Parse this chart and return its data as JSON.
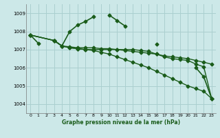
{
  "title": "Graphe pression niveau de la mer (hPa)",
  "bg_color": "#cce8e8",
  "grid_color": "#aacfcf",
  "line_color": "#1a5c1a",
  "marker_color": "#1a5c1a",
  "xlim": [
    -0.5,
    23.5
  ],
  "ylim": [
    1003.5,
    1009.5
  ],
  "yticks": [
    1004,
    1005,
    1006,
    1007,
    1008,
    1009
  ],
  "xticks": [
    0,
    1,
    2,
    3,
    4,
    5,
    6,
    7,
    8,
    9,
    10,
    11,
    12,
    13,
    14,
    15,
    16,
    17,
    18,
    19,
    20,
    21,
    22,
    23
  ],
  "series": [
    {
      "x": [
        0,
        1,
        2,
        3,
        4,
        5,
        6,
        7,
        8,
        9,
        10,
        11,
        12,
        13,
        14,
        15,
        16,
        17,
        18,
        19,
        20,
        21,
        22,
        23
      ],
      "y": [
        1007.8,
        1007.35,
        null,
        1007.5,
        1007.2,
        1008.0,
        1008.35,
        1008.55,
        1008.8,
        null,
        1008.9,
        1008.6,
        1008.3,
        null,
        null,
        null,
        1007.3,
        null,
        null,
        null,
        null,
        1006.0,
        1005.5,
        1004.3
      ],
      "lw": 1.2,
      "marker": "D",
      "ms": 2.5,
      "ls": "-",
      "zorder": 4
    },
    {
      "x": [
        0,
        3,
        4,
        5,
        6,
        7,
        8,
        9,
        10,
        11,
        12,
        13,
        14,
        15,
        16,
        17,
        18,
        19,
        20,
        21,
        22,
        23
      ],
      "y": [
        1007.8,
        1007.5,
        1007.2,
        1007.15,
        1007.1,
        1007.1,
        1007.1,
        1007.05,
        1007.05,
        1007.0,
        1006.95,
        1006.9,
        1006.85,
        1006.8,
        1006.75,
        1006.65,
        1006.6,
        1006.55,
        1006.5,
        1006.4,
        1006.3,
        1006.2
      ],
      "lw": 1.0,
      "marker": "D",
      "ms": 2.5,
      "ls": "-",
      "zorder": 3
    },
    {
      "x": [
        0,
        3,
        4,
        5,
        6,
        7,
        8,
        9,
        10,
        11,
        12,
        13,
        14,
        15,
        16,
        17,
        18,
        19,
        20,
        21,
        22,
        23
      ],
      "y": [
        1007.8,
        1007.5,
        1007.2,
        1007.1,
        1007.05,
        1007.0,
        1006.95,
        1006.85,
        1006.75,
        1006.6,
        1006.45,
        1006.3,
        1006.15,
        1006.0,
        1005.8,
        1005.6,
        1005.4,
        1005.2,
        1005.0,
        1004.85,
        1004.7,
        1004.3
      ],
      "lw": 1.0,
      "marker": "D",
      "ms": 2.5,
      "ls": "-",
      "zorder": 3
    },
    {
      "x": [
        0,
        3,
        4,
        5,
        6,
        7,
        8,
        9,
        10,
        11,
        12,
        13,
        14,
        15,
        16,
        17,
        18,
        19,
        20,
        21,
        22,
        23
      ],
      "y": [
        1007.8,
        1007.5,
        1007.2,
        1007.1,
        1007.05,
        1007.0,
        1007.0,
        1007.0,
        1007.0,
        1007.0,
        1007.0,
        1007.0,
        1006.95,
        1006.9,
        1006.75,
        1006.6,
        1006.5,
        1006.45,
        1006.4,
        1006.2,
        1006.05,
        1004.3
      ],
      "lw": 1.0,
      "marker": "D",
      "ms": 2.5,
      "ls": "-",
      "zorder": 3
    }
  ]
}
